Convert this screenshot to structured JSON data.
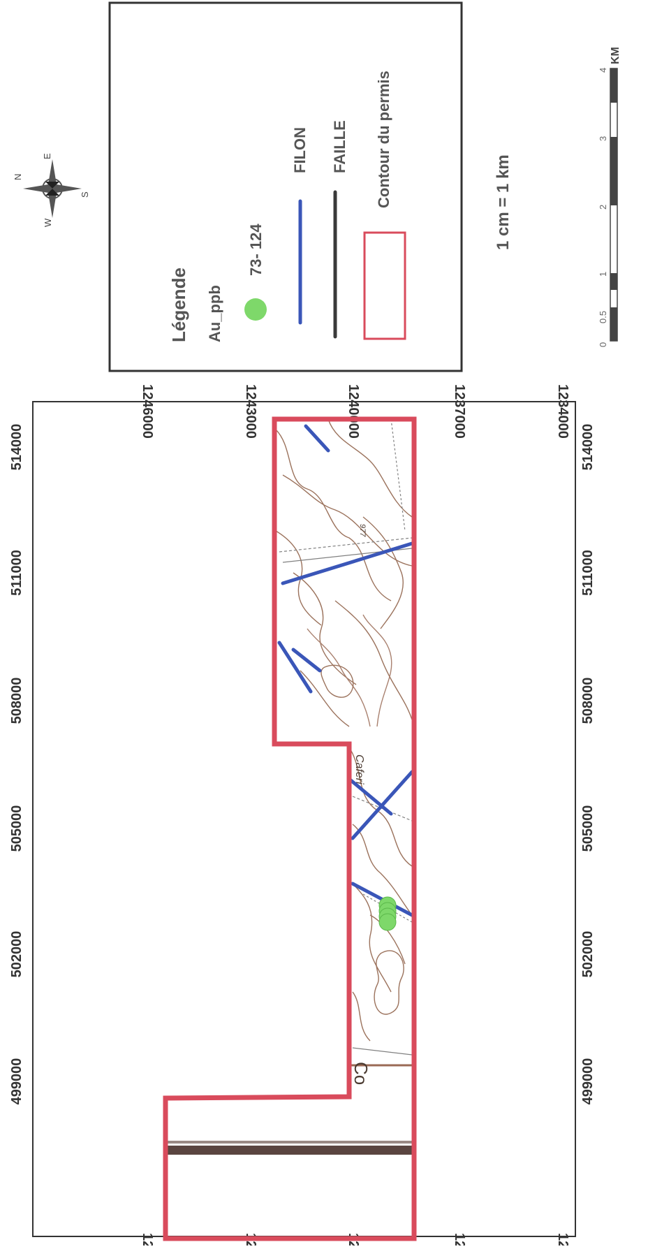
{
  "map": {
    "x_ticks": [
      "514000",
      "511000",
      "508000",
      "505000",
      "502000",
      "499000"
    ],
    "y_ticks": [
      "1246000",
      "1243000",
      "1240000",
      "1237000",
      "1234000"
    ],
    "place_labels": [
      "Caferi",
      "Co",
      "977"
    ]
  },
  "legend": {
    "title": "Légende",
    "field": "Au_ppb",
    "sample_label": "73- 124",
    "vein_label": "FILON",
    "fault_label": "FAILLE",
    "permit_label": "Contour du permis",
    "colors": {
      "sample": "#7ed86a",
      "vein": "#3a56b8",
      "fault": "#3a3a3a",
      "permit": "#d94b5c"
    }
  },
  "scale": {
    "text": "1 cm = 1 km",
    "ticks": [
      "0",
      "0.5",
      "1",
      "2",
      "3",
      "4"
    ],
    "unit": "KM"
  },
  "compass": {
    "n": "N",
    "e": "E",
    "s": "S",
    "w": "W"
  }
}
